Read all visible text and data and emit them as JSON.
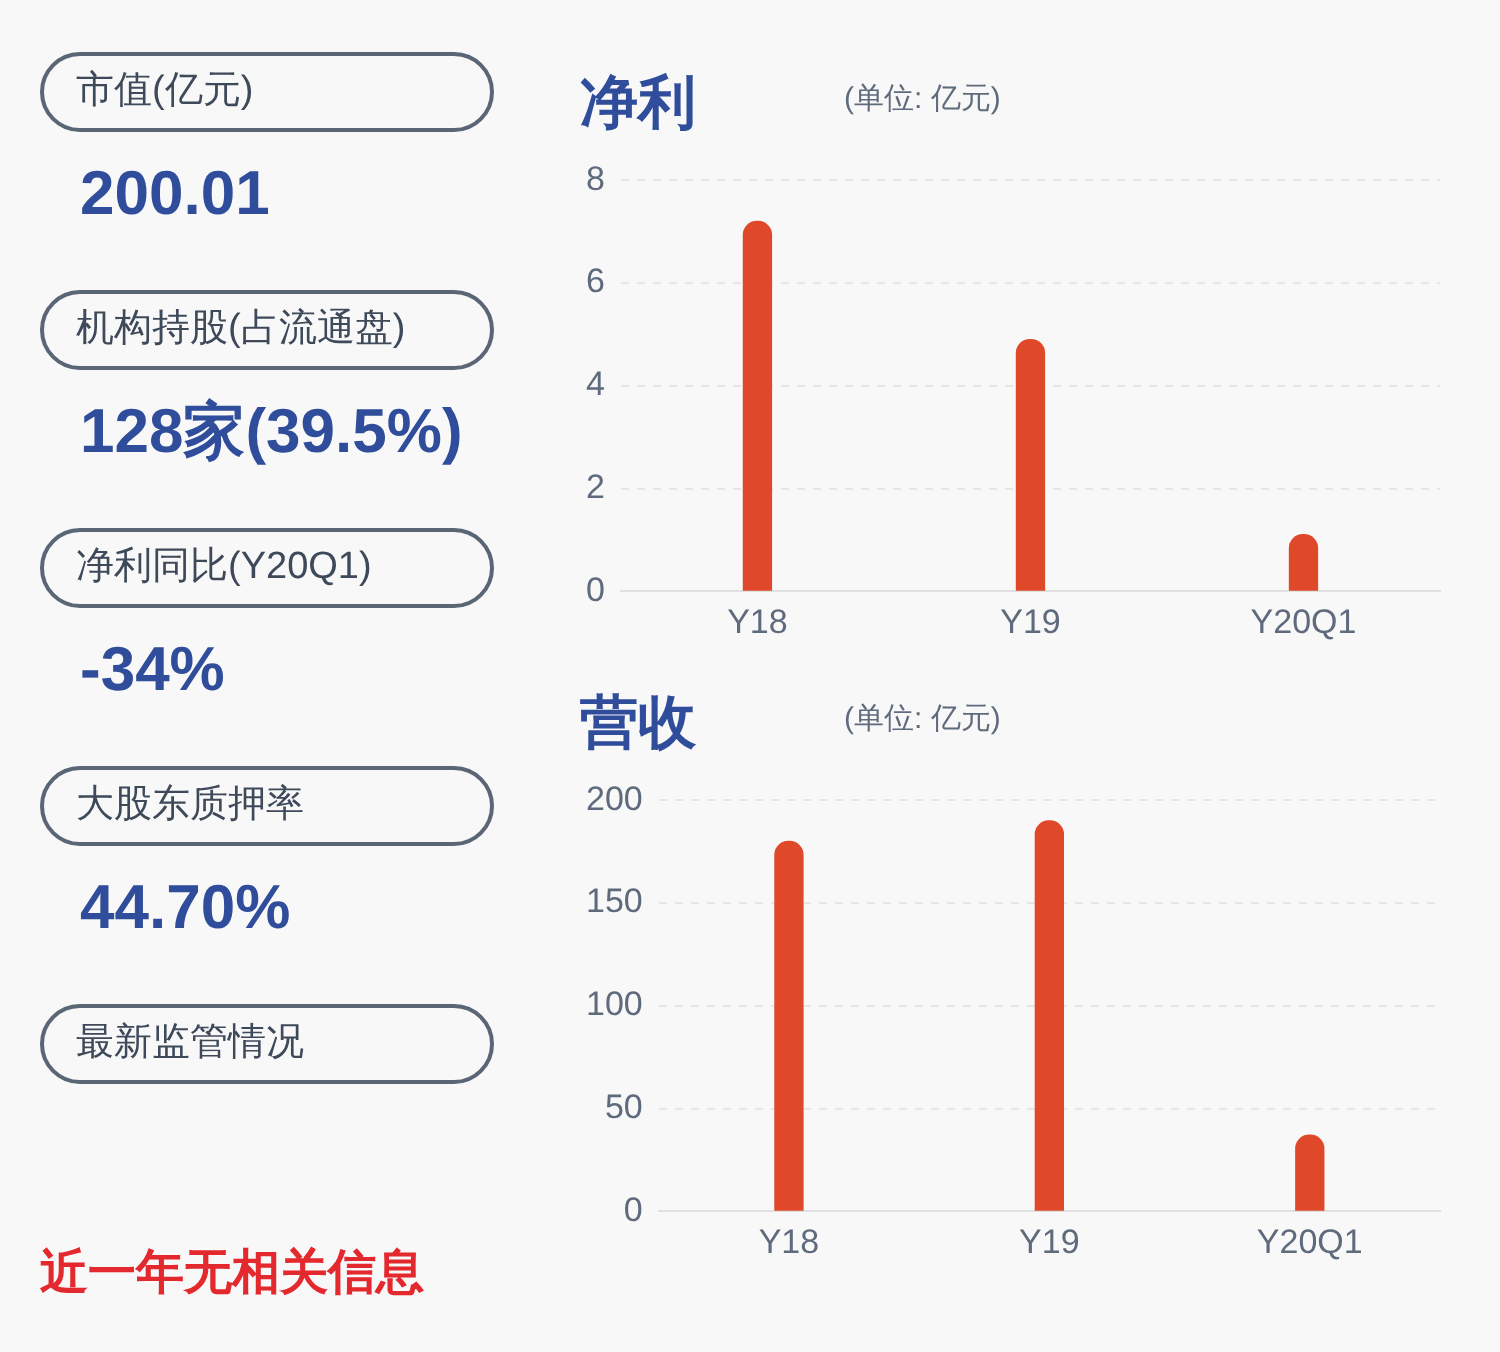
{
  "chart_data": [
    {
      "type": "other",
      "annotations": [
        "市值(亿元)",
        "200.01",
        "机构持股(占流通盘)",
        "128家(39.5%)",
        "净利同比(Y20Q1)",
        "-34%",
        "大股东质押率",
        "44.70%",
        "最新监管情况",
        "近一年无相关信息"
      ]
    },
    {
      "type": "bar",
      "title": "净利",
      "subtitle": "(单位: 亿元)",
      "categories": [
        "Y18",
        "Y19",
        "Y20Q1"
      ],
      "values": [
        7.2,
        4.9,
        1.1
      ],
      "color": "#e0482a",
      "ylim": [
        0,
        8
      ],
      "yticks": [
        0,
        2,
        4,
        6,
        8
      ],
      "grid": "y",
      "legend": false
    },
    {
      "type": "bar",
      "title": "营收",
      "subtitle": "(单位: 亿元)",
      "categories": [
        "Y18",
        "Y19",
        "Y20Q1"
      ],
      "values": [
        180,
        190,
        37
      ],
      "color": "#e0482a",
      "ylim": [
        0,
        200
      ],
      "yticks": [
        0,
        50,
        100,
        150,
        200
      ],
      "grid": "y",
      "legend": false
    }
  ]
}
